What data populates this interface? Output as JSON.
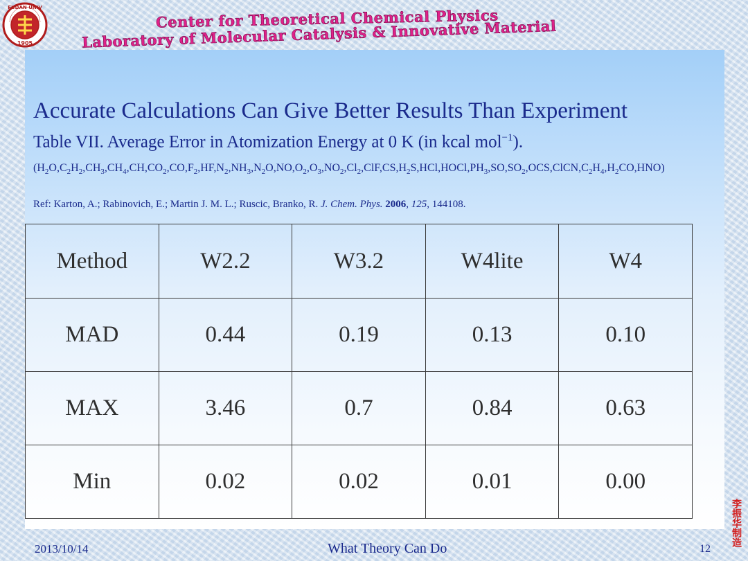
{
  "header": {
    "center_title": "Center for Theoretical Chemical Physics",
    "lab_title": "Laboratory of Molecular Catalysis & Innovative Material",
    "logo_text": "FUDAN UNIVERSITY 1905"
  },
  "slide": {
    "title": "Accurate Calculations Can Give Better Results Than Experiment",
    "caption_main": "Table VII. Average Error in Atomization Energy at 0 K (in kcal mol",
    "caption_sup": "−1",
    "caption_end": ").",
    "molecules": [
      {
        "t": "(H"
      },
      {
        "s": "2"
      },
      {
        "t": "O,C"
      },
      {
        "s": "2"
      },
      {
        "t": "H"
      },
      {
        "s": "2"
      },
      {
        "t": ",CH"
      },
      {
        "s": "3"
      },
      {
        "t": ",CH"
      },
      {
        "s": "4"
      },
      {
        "t": ",CH,CO"
      },
      {
        "s": "2"
      },
      {
        "t": ",CO,F"
      },
      {
        "s": "2"
      },
      {
        "t": ",HF,N"
      },
      {
        "s": "2"
      },
      {
        "t": ",NH"
      },
      {
        "s": "3"
      },
      {
        "t": ",N"
      },
      {
        "s": "2"
      },
      {
        "t": "O,NO,O"
      },
      {
        "s": "2"
      },
      {
        "t": ",O"
      },
      {
        "s": "3"
      },
      {
        "t": ",NO"
      },
      {
        "s": "2"
      },
      {
        "t": ",Cl"
      },
      {
        "s": "2"
      },
      {
        "t": ",ClF,CS,H"
      },
      {
        "s": "2"
      },
      {
        "t": "S,HCl,HOCl,PH"
      },
      {
        "s": "3"
      },
      {
        "t": ",SO,SO"
      },
      {
        "s": "2"
      },
      {
        "t": ",OCS,ClCN,C"
      },
      {
        "s": "2"
      },
      {
        "t": "H"
      },
      {
        "s": "4"
      },
      {
        "t": ",H"
      },
      {
        "s": "2"
      },
      {
        "t": "CO,HNO)"
      }
    ],
    "reference": {
      "prefix": "Ref: Karton, A.; Rabinovich, E.; Martin J. M. L.; Ruscic, Branko, R. ",
      "journal": "J. Chem. Phys.",
      "sep1": " ",
      "year": "2006",
      "sep2": ", ",
      "volume": "125",
      "pages": ", 144108."
    }
  },
  "table": {
    "headers": [
      "Method",
      "W2.2",
      "W3.2",
      "W4lite",
      "W4"
    ],
    "rows": [
      [
        "MAD",
        "0.44",
        "0.19",
        "0.13",
        "0.10"
      ],
      [
        "MAX",
        "3.46",
        "0.7",
        "0.84",
        "0.63"
      ],
      [
        "Min",
        "0.02",
        "0.02",
        "0.01",
        "0.00"
      ]
    ]
  },
  "footer": {
    "date": "2013/10/14",
    "center": "What Theory Can Do",
    "page": "12",
    "stamp": "李振华制造"
  },
  "colors": {
    "header_text": "#e0218a",
    "body_text": "#1a2a8c",
    "table_text": "#2e2e2e",
    "stamp": "#d21f1f"
  }
}
